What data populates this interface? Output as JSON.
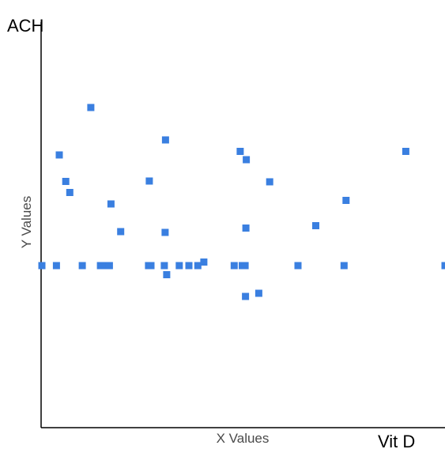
{
  "chart_data": {
    "type": "scatter",
    "title": "",
    "xlabel": "X Values",
    "ylabel": "Y Values",
    "corner_y_label": "ACH",
    "corner_x_label": "Vit D",
    "xlim": [
      0,
      100
    ],
    "ylim": [
      0,
      100
    ],
    "grid": false,
    "legend": "none",
    "marker_color": "#3a7fe0",
    "axis_color": "#000000",
    "series": [
      {
        "points": [
          {
            "x": 0.2,
            "y": 41.0
          },
          {
            "x": 3.8,
            "y": 41.0
          },
          {
            "x": 4.5,
            "y": 69.0
          },
          {
            "x": 6.1,
            "y": 62.3
          },
          {
            "x": 7.1,
            "y": 59.5
          },
          {
            "x": 10.2,
            "y": 41.0
          },
          {
            "x": 12.3,
            "y": 81.0
          },
          {
            "x": 14.7,
            "y": 41.0
          },
          {
            "x": 15.4,
            "y": 41.0
          },
          {
            "x": 16.9,
            "y": 41.0
          },
          {
            "x": 17.3,
            "y": 56.6
          },
          {
            "x": 19.7,
            "y": 49.6
          },
          {
            "x": 26.6,
            "y": 41.0
          },
          {
            "x": 26.8,
            "y": 62.4
          },
          {
            "x": 27.2,
            "y": 41.0
          },
          {
            "x": 30.5,
            "y": 41.0
          },
          {
            "x": 30.7,
            "y": 49.4
          },
          {
            "x": 30.8,
            "y": 72.8
          },
          {
            "x": 31.1,
            "y": 38.7
          },
          {
            "x": 34.2,
            "y": 41.0
          },
          {
            "x": 36.6,
            "y": 41.0
          },
          {
            "x": 38.8,
            "y": 41.0
          },
          {
            "x": 40.3,
            "y": 41.9
          },
          {
            "x": 47.8,
            "y": 41.0
          },
          {
            "x": 49.3,
            "y": 69.9
          },
          {
            "x": 49.8,
            "y": 41.0
          },
          {
            "x": 50.5,
            "y": 41.0
          },
          {
            "x": 50.6,
            "y": 33.2
          },
          {
            "x": 50.7,
            "y": 50.5
          },
          {
            "x": 50.8,
            "y": 67.8
          },
          {
            "x": 53.9,
            "y": 34.0
          },
          {
            "x": 56.6,
            "y": 62.2
          },
          {
            "x": 63.6,
            "y": 41.0
          },
          {
            "x": 68.0,
            "y": 51.1
          },
          {
            "x": 75.0,
            "y": 41.0
          },
          {
            "x": 75.5,
            "y": 57.5
          },
          {
            "x": 90.3,
            "y": 69.9
          },
          {
            "x": 100.0,
            "y": 41.0
          }
        ]
      }
    ]
  }
}
